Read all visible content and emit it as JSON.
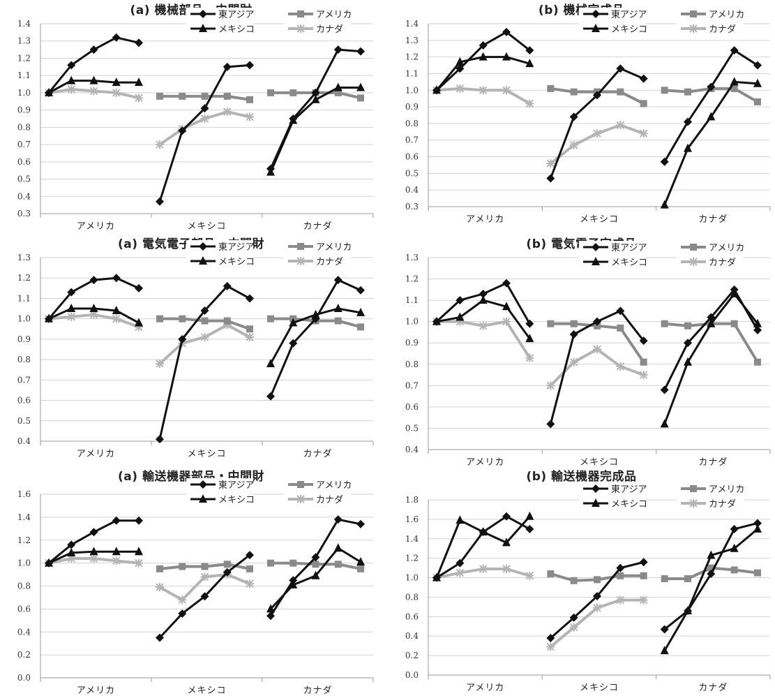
{
  "chart_data": [
    {
      "type": "line",
      "title": "(a) 機械部品・中間財",
      "ylim": [
        0.3,
        1.4
      ],
      "yticks": [
        "0.3",
        "0.4",
        "0.5",
        "0.6",
        "0.7",
        "0.8",
        "0.9",
        "1.0",
        "1.1",
        "1.2",
        "1.3",
        "1.4"
      ],
      "categories": [
        "アメリカ",
        "メキシコ",
        "カナダ"
      ],
      "legend": [
        "東アジア",
        "アメリカ",
        "メキシコ",
        "カナダ"
      ],
      "grid": true,
      "groups": [
        {
          "category": "アメリカ",
          "series": {
            "東アジア": [
              1.0,
              1.16,
              1.25,
              1.32,
              1.29
            ],
            "メキシコ": [
              1.0,
              1.07,
              1.07,
              1.06,
              1.06
            ],
            "カナダ": [
              1.0,
              1.02,
              1.01,
              1.0,
              0.97
            ]
          }
        },
        {
          "category": "メキシコ",
          "series": {
            "東アジア": [
              0.37,
              0.78,
              0.91,
              1.15,
              1.16
            ],
            "アメリカ": [
              0.98,
              0.98,
              0.98,
              0.98,
              0.96
            ],
            "カナダ": [
              0.7,
              0.79,
              0.85,
              0.89,
              0.86
            ]
          }
        },
        {
          "category": "カナダ",
          "series": {
            "東アジア": [
              0.56,
              0.85,
              1.0,
              1.25,
              1.24
            ],
            "アメリカ": [
              1.0,
              1.0,
              1.0,
              1.0,
              0.97
            ],
            "メキシコ": [
              0.54,
              0.84,
              0.96,
              1.03,
              1.03
            ]
          }
        }
      ]
    },
    {
      "type": "line",
      "title": "(b) 機械完成品",
      "ylim": [
        0.3,
        1.4
      ],
      "yticks": [
        "0.3",
        "0.4",
        "0.5",
        "0.6",
        "0.7",
        "0.8",
        "0.9",
        "1.0",
        "1.1",
        "1.2",
        "1.3",
        "1.4"
      ],
      "categories": [
        "アメリカ",
        "メキシコ",
        "カナダ"
      ],
      "legend": [
        "東アジア",
        "アメリカ",
        "メキシコ",
        "カナダ"
      ],
      "grid": true,
      "groups": [
        {
          "category": "アメリカ",
          "series": {
            "東アジア": [
              1.0,
              1.13,
              1.27,
              1.35,
              1.24
            ],
            "メキシコ": [
              1.0,
              1.17,
              1.2,
              1.2,
              1.16
            ],
            "カナダ": [
              1.0,
              1.01,
              1.0,
              1.0,
              0.92
            ]
          }
        },
        {
          "category": "メキシコ",
          "series": {
            "東アジア": [
              0.47,
              0.84,
              0.97,
              1.13,
              1.07
            ],
            "アメリカ": [
              1.01,
              0.99,
              0.99,
              0.99,
              0.92
            ],
            "カナダ": [
              0.56,
              0.67,
              0.74,
              0.79,
              0.74
            ]
          }
        },
        {
          "category": "カナダ",
          "series": {
            "東アジア": [
              0.57,
              0.81,
              1.02,
              1.24,
              1.15
            ],
            "アメリカ": [
              1.0,
              0.99,
              1.01,
              1.01,
              0.93
            ],
            "メキシコ": [
              0.31,
              0.65,
              0.84,
              1.05,
              1.04
            ]
          }
        }
      ]
    },
    {
      "type": "line",
      "title": "(a) 電気電子部品・中間財",
      "ylim": [
        0.4,
        1.3
      ],
      "yticks": [
        "0.4",
        "0.5",
        "0.6",
        "0.7",
        "0.8",
        "0.9",
        "1.0",
        "1.1",
        "1.2",
        "1.3"
      ],
      "categories": [
        "アメリカ",
        "メキシコ",
        "カナダ"
      ],
      "legend": [
        "東アジア",
        "アメリカ",
        "メキシコ",
        "カナダ"
      ],
      "grid": true,
      "groups": [
        {
          "category": "アメリカ",
          "series": {
            "東アジア": [
              1.0,
              1.13,
              1.19,
              1.2,
              1.15
            ],
            "メキシコ": [
              1.0,
              1.05,
              1.05,
              1.04,
              0.98
            ],
            "カナダ": [
              1.0,
              1.01,
              1.02,
              1.0,
              0.96
            ]
          }
        },
        {
          "category": "メキシコ",
          "series": {
            "東アジア": [
              0.41,
              0.9,
              1.04,
              1.16,
              1.1
            ],
            "アメリカ": [
              1.0,
              1.0,
              0.99,
              0.99,
              0.95
            ],
            "カナダ": [
              0.78,
              0.88,
              0.91,
              0.97,
              0.91
            ]
          }
        },
        {
          "category": "カナダ",
          "series": {
            "東アジア": [
              0.62,
              0.88,
              1.0,
              1.19,
              1.14
            ],
            "アメリカ": [
              1.0,
              1.0,
              0.99,
              0.99,
              0.96
            ],
            "メキシコ": [
              0.78,
              0.98,
              1.02,
              1.05,
              1.03
            ]
          }
        }
      ]
    },
    {
      "type": "line",
      "title": "(b) 電気電子完成品",
      "ylim": [
        0.4,
        1.3
      ],
      "yticks": [
        "0.4",
        "0.5",
        "0.6",
        "0.7",
        "0.8",
        "0.9",
        "1.0",
        "1.1",
        "1.2",
        "1.3"
      ],
      "categories": [
        "アメリカ",
        "メキシコ",
        "カナダ"
      ],
      "legend": [
        "東アジア",
        "アメリカ",
        "メキシコ",
        "カナダ"
      ],
      "grid": true,
      "groups": [
        {
          "category": "アメリカ",
          "series": {
            "東アジア": [
              1.0,
              1.1,
              1.13,
              1.18,
              0.99
            ],
            "メキシコ": [
              1.0,
              1.02,
              1.1,
              1.07,
              0.92
            ],
            "カナダ": [
              1.0,
              1.0,
              0.98,
              1.0,
              0.83
            ]
          }
        },
        {
          "category": "メキシコ",
          "series": {
            "東アジア": [
              0.52,
              0.94,
              1.0,
              1.05,
              0.91
            ],
            "アメリカ": [
              0.99,
              0.99,
              0.98,
              0.97,
              0.81
            ],
            "カナダ": [
              0.7,
              0.81,
              0.87,
              0.79,
              0.75
            ]
          }
        },
        {
          "category": "カナダ",
          "series": {
            "東アジア": [
              0.68,
              0.9,
              1.02,
              1.15,
              0.96
            ],
            "アメリカ": [
              0.99,
              0.98,
              0.99,
              0.99,
              0.81
            ],
            "メキシコ": [
              0.52,
              0.81,
              0.99,
              1.13,
              0.99
            ]
          }
        }
      ]
    },
    {
      "type": "line",
      "title": "(a) 輸送機器部品・中間財",
      "ylim": [
        0.0,
        1.6
      ],
      "yticks": [
        "0.0",
        "0.2",
        "0.4",
        "0.6",
        "0.8",
        "1.0",
        "1.2",
        "1.4",
        "1.6"
      ],
      "categories": [
        "アメリカ",
        "メキシコ",
        "カナダ"
      ],
      "legend": [
        "東アジア",
        "アメリカ",
        "メキシコ",
        "カナダ"
      ],
      "grid": true,
      "groups": [
        {
          "category": "アメリカ",
          "series": {
            "東アジア": [
              1.0,
              1.16,
              1.27,
              1.37,
              1.37
            ],
            "メキシコ": [
              1.0,
              1.09,
              1.1,
              1.1,
              1.1
            ],
            "カナダ": [
              1.0,
              1.04,
              1.04,
              1.02,
              1.0
            ]
          }
        },
        {
          "category": "メキシコ",
          "series": {
            "東アジア": [
              0.35,
              0.56,
              0.71,
              0.92,
              1.07
            ],
            "アメリカ": [
              0.95,
              0.97,
              0.97,
              0.99,
              0.95
            ],
            "カナダ": [
              0.79,
              0.68,
              0.88,
              0.9,
              0.82
            ]
          }
        },
        {
          "category": "カナダ",
          "series": {
            "東アジア": [
              0.54,
              0.85,
              1.05,
              1.38,
              1.34
            ],
            "アメリカ": [
              1.0,
              1.0,
              0.99,
              0.99,
              0.95
            ],
            "メキシコ": [
              0.6,
              0.81,
              0.89,
              1.13,
              1.01
            ]
          }
        }
      ]
    },
    {
      "type": "line",
      "title": "(b) 輸送機器完成品",
      "ylim": [
        0.0,
        1.8
      ],
      "yticks": [
        "0.0",
        "0.2",
        "0.4",
        "0.6",
        "0.8",
        "1.0",
        "1.2",
        "1.4",
        "1.6",
        "1.8"
      ],
      "categories": [
        "アメリカ",
        "メキシコ",
        "カナダ"
      ],
      "legend": [
        "東アジア",
        "アメリカ",
        "メキシコ",
        "カナダ"
      ],
      "grid": true,
      "groups": [
        {
          "category": "アメリカ",
          "series": {
            "東アジア": [
              1.0,
              1.15,
              1.47,
              1.63,
              1.5
            ],
            "メキシコ": [
              1.0,
              1.59,
              1.47,
              1.36,
              1.63
            ],
            "カナダ": [
              1.0,
              1.05,
              1.09,
              1.09,
              1.02
            ]
          }
        },
        {
          "category": "メキシコ",
          "series": {
            "東アジア": [
              0.38,
              0.59,
              0.81,
              1.1,
              1.16
            ],
            "アメリカ": [
              1.04,
              0.97,
              0.98,
              1.02,
              1.02
            ],
            "カナダ": [
              0.29,
              0.49,
              0.69,
              0.77,
              0.77
            ]
          }
        },
        {
          "category": "カナダ",
          "series": {
            "東アジア": [
              0.47,
              0.66,
              1.04,
              1.5,
              1.56
            ],
            "アメリカ": [
              0.99,
              0.99,
              1.1,
              1.08,
              1.05
            ],
            "メキシコ": [
              0.25,
              0.66,
              1.23,
              1.3,
              1.5
            ]
          }
        }
      ]
    }
  ]
}
